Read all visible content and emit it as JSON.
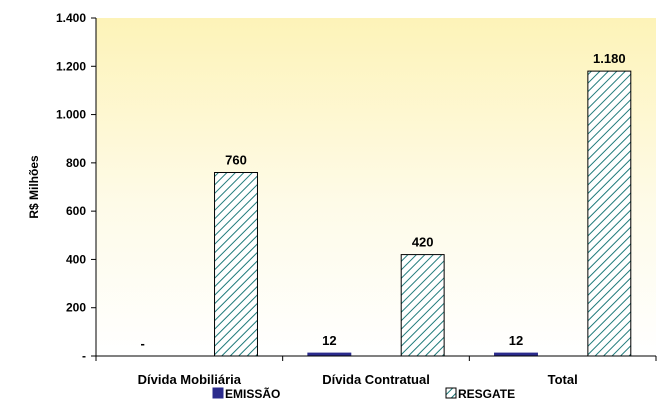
{
  "chart_data": {
    "type": "bar",
    "categories": [
      "Dívida Mobiliária",
      "Dívida Contratual",
      "Total"
    ],
    "series": [
      {
        "name": "EMISSÃO",
        "values": [
          0,
          12,
          12
        ],
        "labels": [
          "-",
          "12",
          "12"
        ],
        "color": "#2b2b8c"
      },
      {
        "name": "RESGATE",
        "values": [
          760,
          420,
          1180
        ],
        "labels": [
          "760",
          "420",
          "1.180"
        ],
        "color": "#1f7a7a",
        "pattern": "diagonal-hatch"
      }
    ],
    "ylabel": "R$ Milhões",
    "xlabel": "",
    "ylim": [
      0,
      1400
    ],
    "yticks": [
      0,
      200,
      400,
      600,
      800,
      1000,
      1200,
      1400
    ],
    "ytick_labels": [
      "-",
      "200",
      "400",
      "600",
      "800",
      "1.000",
      "1.200",
      "1.400"
    ],
    "grid": false,
    "legend_position": "bottom",
    "background": "yellow-gradient"
  }
}
